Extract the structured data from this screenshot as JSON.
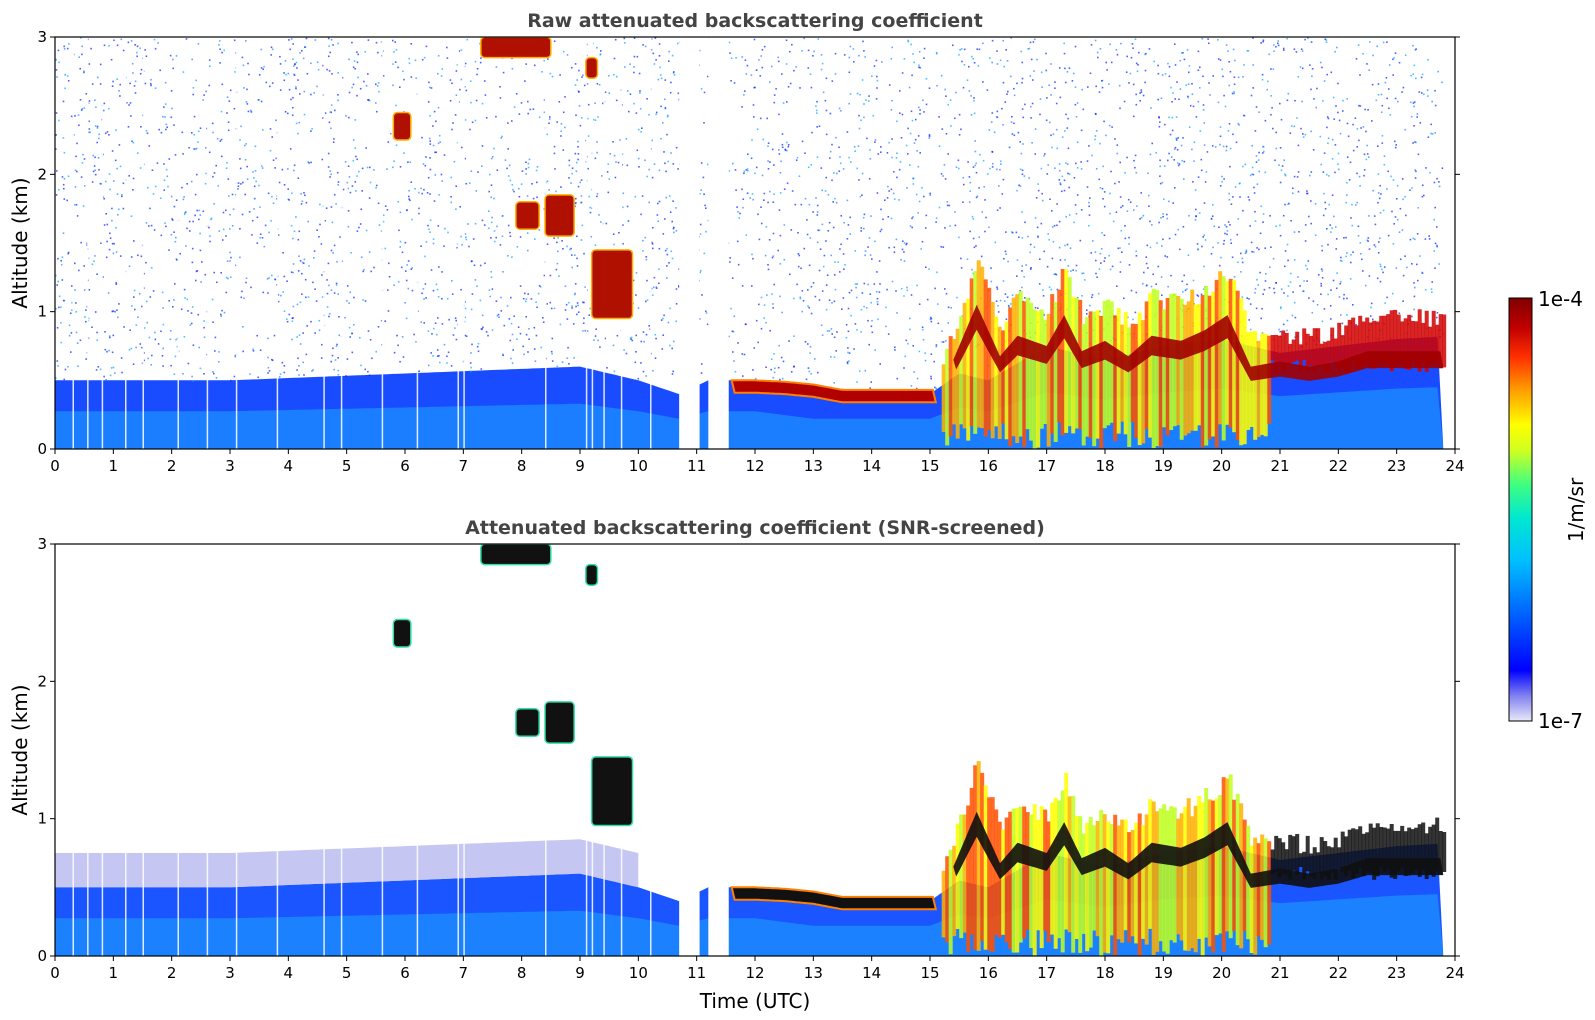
{
  "chart_data": [
    {
      "type": "heatmap",
      "title": "Raw attenuated backscattering coefficient",
      "xlabel": "",
      "ylabel": "Altitude (km)",
      "xlim": [
        0,
        24
      ],
      "ylim": [
        0,
        3
      ],
      "xticks": [
        "0",
        "1",
        "2",
        "3",
        "4",
        "5",
        "6",
        "7",
        "8",
        "9",
        "10",
        "11",
        "12",
        "13",
        "14",
        "15",
        "16",
        "17",
        "18",
        "19",
        "20",
        "21",
        "22",
        "23",
        "24"
      ],
      "yticks": [
        "0",
        "1",
        "2",
        "3"
      ],
      "boundary_layer_top_km": [
        [
          0,
          0.5
        ],
        [
          3,
          0.5
        ],
        [
          6,
          0.55
        ],
        [
          9,
          0.6
        ],
        [
          10,
          0.5
        ],
        [
          10.7,
          0.4
        ],
        [
          11.2,
          0.5
        ],
        [
          12,
          0.5
        ],
        [
          13,
          0.4
        ],
        [
          14,
          0.4
        ],
        [
          15,
          0.4
        ],
        [
          15.5,
          0.55
        ],
        [
          16,
          0.5
        ],
        [
          17,
          0.75
        ],
        [
          18,
          0.65
        ],
        [
          19,
          0.75
        ],
        [
          20,
          0.8
        ],
        [
          21,
          0.7
        ],
        [
          22,
          0.75
        ],
        [
          23,
          0.8
        ],
        [
          23.8,
          0.82
        ]
      ],
      "cloud_layer_km": [
        [
          11.6,
          0.45
        ],
        [
          12,
          0.45
        ],
        [
          12.5,
          0.44
        ],
        [
          13,
          0.42
        ],
        [
          13.5,
          0.38
        ],
        [
          14,
          0.38
        ],
        [
          14.5,
          0.38
        ],
        [
          15,
          0.38
        ]
      ],
      "high_cloud_features": [
        {
          "time": [
            7.3,
            8.5
          ],
          "alt_km": [
            2.85,
            3.0
          ]
        },
        {
          "time": [
            5.8,
            6.1
          ],
          "alt_km": [
            2.25,
            2.45
          ]
        },
        {
          "time": [
            7.9,
            8.3
          ],
          "alt_km": [
            1.6,
            1.8
          ]
        },
        {
          "time": [
            8.4,
            8.9
          ],
          "alt_km": [
            1.55,
            1.85
          ]
        },
        {
          "time": [
            9.2,
            9.9
          ],
          "alt_km": [
            0.95,
            1.45
          ]
        },
        {
          "time": [
            9.1,
            9.3
          ],
          "alt_km": [
            2.7,
            2.85
          ]
        }
      ],
      "data_gaps_utc": [
        [
          10.7,
          11.05
        ],
        [
          11.2,
          11.55
        ]
      ]
    },
    {
      "type": "heatmap",
      "title": "Attenuated backscattering coefficient (SNR-screened)",
      "xlabel": "Time (UTC)",
      "ylabel": "Altitude (km)",
      "xlim": [
        0,
        24
      ],
      "ylim": [
        0,
        3
      ],
      "xticks": [
        "0",
        "1",
        "2",
        "3",
        "4",
        "5",
        "6",
        "7",
        "8",
        "9",
        "10",
        "11",
        "12",
        "13",
        "14",
        "15",
        "16",
        "17",
        "18",
        "19",
        "20",
        "21",
        "22",
        "23",
        "24"
      ],
      "yticks": [
        "0",
        "1",
        "2",
        "3"
      ]
    }
  ],
  "colorbar": {
    "label": "1/m/sr",
    "max_label": "1e-4",
    "min_label": "1e-7",
    "scale": "log",
    "colors": [
      "#e8e8f8",
      "#c0c0f0",
      "#7070f0",
      "#0000ff",
      "#0050ff",
      "#00a0ff",
      "#00e0e0",
      "#40ff80",
      "#c0ff20",
      "#ffff00",
      "#ffb000",
      "#ff5000",
      "#e00000",
      "#800000"
    ]
  }
}
